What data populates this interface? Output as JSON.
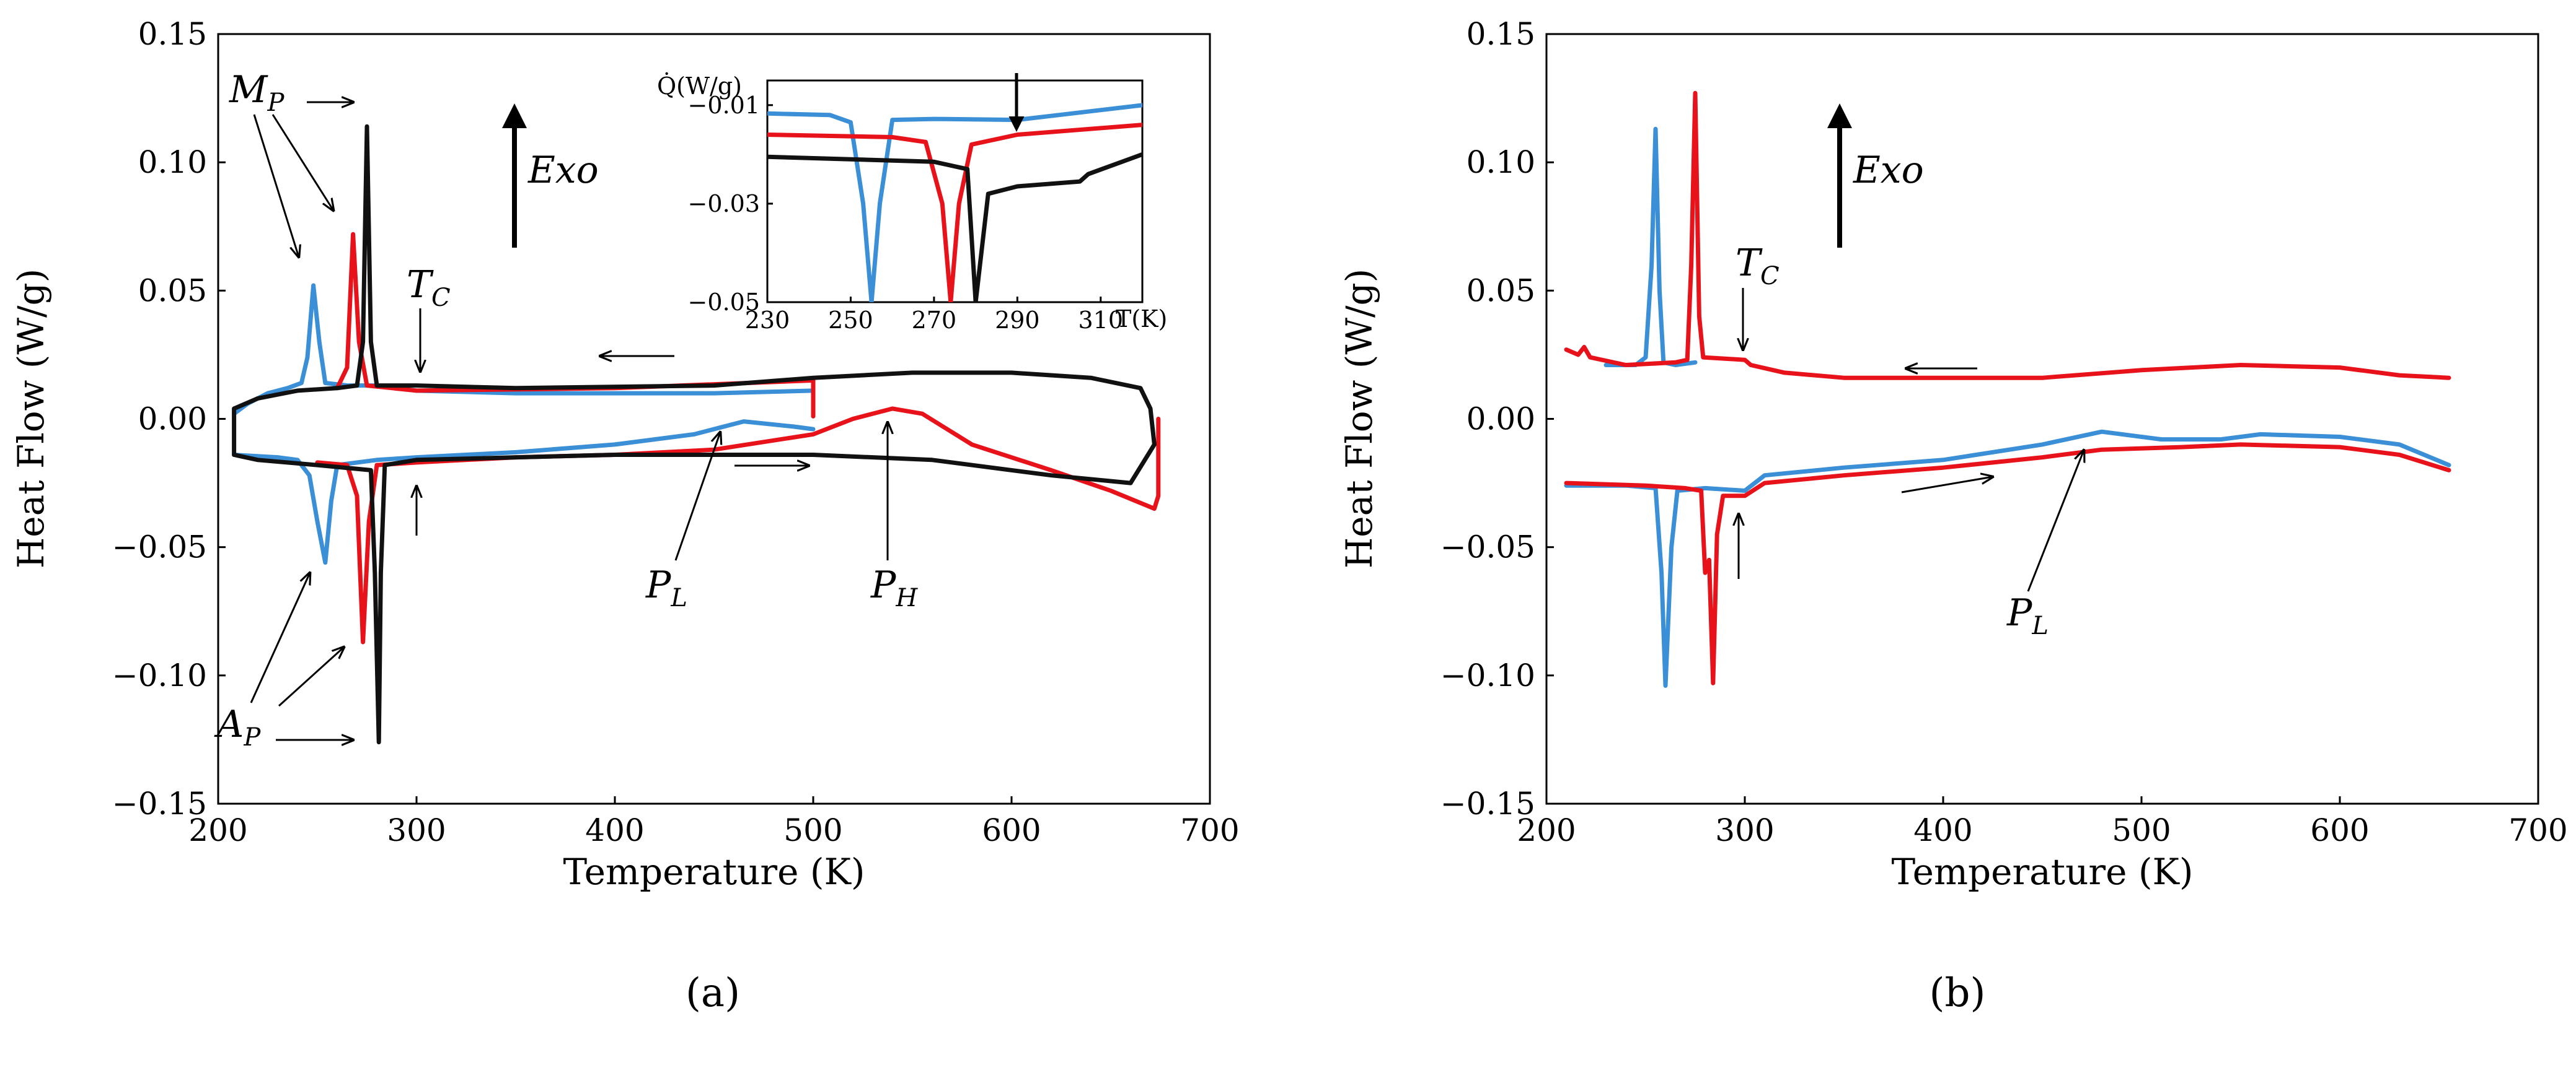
{
  "colors": {
    "blue": "#3a8fd6",
    "red": "#e8121a",
    "black": "#111111"
  },
  "chart_data": [
    {
      "type": "line",
      "panel_label": "(a)",
      "xlabel": "Temperature (K)",
      "ylabel": "Heat Flow (W/g)",
      "xlim": [
        200,
        700
      ],
      "ylim": [
        -0.15,
        0.15
      ],
      "xticks": [
        "200",
        "300",
        "400",
        "500",
        "600",
        "700"
      ],
      "yticks": [
        "0.15",
        "0.10",
        "0.05",
        "0.00",
        "-0.05",
        "-0.10",
        "-0.15"
      ],
      "series": [
        {
          "name": "blue cooling",
          "color": "blue",
          "points": [
            [
              208,
              0.002
            ],
            [
              215,
              0.006
            ],
            [
              225,
              0.01
            ],
            [
              235,
              0.012
            ],
            [
              242,
              0.014
            ],
            [
              245,
              0.024
            ],
            [
              248,
              0.052
            ],
            [
              251,
              0.03
            ],
            [
              254,
              0.014
            ],
            [
              265,
              0.013
            ],
            [
              280,
              0.013
            ],
            [
              300,
              0.011
            ],
            [
              350,
              0.01
            ],
            [
              450,
              0.01
            ],
            [
              500,
              0.011
            ]
          ]
        },
        {
          "name": "blue heating",
          "color": "blue",
          "points": [
            [
              208,
              -0.014
            ],
            [
              230,
              -0.015
            ],
            [
              240,
              -0.016
            ],
            [
              246,
              -0.022
            ],
            [
              250,
              -0.04
            ],
            [
              254,
              -0.056
            ],
            [
              257,
              -0.032
            ],
            [
              260,
              -0.018
            ],
            [
              280,
              -0.016
            ],
            [
              300,
              -0.015
            ],
            [
              350,
              -0.013
            ],
            [
              400,
              -0.01
            ],
            [
              440,
              -0.006
            ],
            [
              465,
              -0.001
            ],
            [
              490,
              -0.003
            ],
            [
              500,
              -0.004
            ]
          ]
        },
        {
          "name": "red cooling",
          "color": "red",
          "points": [
            [
              260,
              0.012
            ],
            [
              265,
              0.02
            ],
            [
              268,
              0.072
            ],
            [
              271,
              0.03
            ],
            [
              275,
              0.013
            ],
            [
              300,
              0.011
            ],
            [
              400,
              0.012
            ],
            [
              500,
              0.015
            ],
            [
              500,
              0.001
            ]
          ]
        },
        {
          "name": "red heating",
          "color": "red",
          "points": [
            [
              250,
              -0.017
            ],
            [
              265,
              -0.018
            ],
            [
              270,
              -0.03
            ],
            [
              273,
              -0.087
            ],
            [
              276,
              -0.04
            ],
            [
              280,
              -0.018
            ],
            [
              300,
              -0.017
            ],
            [
              350,
              -0.015
            ],
            [
              400,
              -0.014
            ],
            [
              450,
              -0.012
            ],
            [
              500,
              -0.006
            ],
            [
              520,
              0.0
            ],
            [
              540,
              0.004
            ],
            [
              555,
              0.002
            ],
            [
              580,
              -0.01
            ],
            [
              620,
              -0.02
            ],
            [
              650,
              -0.028
            ],
            [
              672,
              -0.035
            ],
            [
              674,
              -0.03
            ],
            [
              674,
              0.0
            ]
          ]
        },
        {
          "name": "black cycle",
          "color": "black",
          "points": [
            [
              208,
              0.004
            ],
            [
              220,
              0.008
            ],
            [
              240,
              0.011
            ],
            [
              260,
              0.012
            ],
            [
              270,
              0.013
            ],
            [
              273,
              0.03
            ],
            [
              275,
              0.114
            ],
            [
              277,
              0.03
            ],
            [
              280,
              0.013
            ],
            [
              300,
              0.013
            ],
            [
              350,
              0.012
            ],
            [
              450,
              0.013
            ],
            [
              500,
              0.016
            ],
            [
              550,
              0.018
            ],
            [
              600,
              0.018
            ],
            [
              640,
              0.016
            ],
            [
              665,
              0.012
            ],
            [
              670,
              0.004
            ],
            [
              672,
              -0.01
            ],
            [
              660,
              -0.025
            ],
            [
              620,
              -0.022
            ],
            [
              560,
              -0.016
            ],
            [
              500,
              -0.014
            ],
            [
              400,
              -0.014
            ],
            [
              300,
              -0.016
            ],
            [
              284,
              -0.018
            ],
            [
              282,
              -0.06
            ],
            [
              281,
              -0.126
            ],
            [
              279,
              -0.06
            ],
            [
              277,
              -0.02
            ],
            [
              250,
              -0.018
            ],
            [
              220,
              -0.016
            ],
            [
              208,
              -0.014
            ],
            [
              208,
              0.004
            ]
          ]
        }
      ],
      "annotations": {
        "mp": {
          "main": "M",
          "sub": "P"
        },
        "ap": {
          "main": "A",
          "sub": "P"
        },
        "tc": {
          "main": "T",
          "sub": "C"
        },
        "pl": {
          "main": "P",
          "sub": "L"
        },
        "ph": {
          "main": "P",
          "sub": "H"
        },
        "exo": "Exo"
      },
      "inset": {
        "ylabel": "Q̇(W/g)",
        "xlabel": "T(K)",
        "xlim": [
          230,
          320
        ],
        "ylim": [
          -0.05,
          -0.005
        ],
        "xticks": [
          "230",
          "250",
          "270",
          "290",
          "310"
        ],
        "yticks": [
          "-0.01",
          "-0.03",
          "-0.05"
        ],
        "series": [
          {
            "name": "blue",
            "color": "blue",
            "points": [
              [
                230,
                -0.0117
              ],
              [
                245,
                -0.012
              ],
              [
                250,
                -0.0135
              ],
              [
                253,
                -0.03
              ],
              [
                255,
                -0.05
              ],
              [
                257,
                -0.03
              ],
              [
                260,
                -0.013
              ],
              [
                270,
                -0.0128
              ],
              [
                290,
                -0.013
              ],
              [
                300,
                -0.012
              ],
              [
                320,
                -0.01
              ]
            ]
          },
          {
            "name": "red",
            "color": "red",
            "points": [
              [
                230,
                -0.016
              ],
              [
                260,
                -0.0165
              ],
              [
                268,
                -0.0175
              ],
              [
                272,
                -0.03
              ],
              [
                274,
                -0.05
              ],
              [
                276,
                -0.03
              ],
              [
                279,
                -0.018
              ],
              [
                290,
                -0.016
              ],
              [
                320,
                -0.014
              ]
            ]
          },
          {
            "name": "black",
            "color": "black",
            "points": [
              [
                230,
                -0.0205
              ],
              [
                270,
                -0.0215
              ],
              [
                278,
                -0.023
              ],
              [
                280,
                -0.05
              ],
              [
                283,
                -0.028
              ],
              [
                290,
                -0.0265
              ],
              [
                305,
                -0.0255
              ],
              [
                307,
                -0.024
              ],
              [
                320,
                -0.02
              ]
            ]
          }
        ]
      }
    },
    {
      "type": "line",
      "panel_label": "(b)",
      "xlabel": "Temperature (K)",
      "ylabel": "Heat Flow (W/g)",
      "xlim": [
        200,
        700
      ],
      "ylim": [
        -0.15,
        0.15
      ],
      "xticks": [
        "200",
        "300",
        "400",
        "500",
        "600",
        "700"
      ],
      "yticks": [
        "0.15",
        "0.10",
        "0.05",
        "0.00",
        "-0.05",
        "-0.10",
        "-0.15"
      ],
      "series": [
        {
          "name": "blue cooling",
          "color": "blue",
          "points": [
            [
              230,
              0.021
            ],
            [
              245,
              0.021
            ],
            [
              250,
              0.024
            ],
            [
              253,
              0.06
            ],
            [
              255,
              0.113
            ],
            [
              257,
              0.05
            ],
            [
              259,
              0.022
            ],
            [
              265,
              0.021
            ],
            [
              275,
              0.022
            ]
          ]
        },
        {
          "name": "blue heating",
          "color": "blue",
          "points": [
            [
              210,
              -0.026
            ],
            [
              240,
              -0.026
            ],
            [
              255,
              -0.027
            ],
            [
              258,
              -0.06
            ],
            [
              260,
              -0.104
            ],
            [
              263,
              -0.05
            ],
            [
              266,
              -0.028
            ],
            [
              280,
              -0.027
            ],
            [
              300,
              -0.028
            ],
            [
              310,
              -0.022
            ],
            [
              350,
              -0.019
            ],
            [
              400,
              -0.016
            ],
            [
              450,
              -0.01
            ],
            [
              480,
              -0.005
            ],
            [
              510,
              -0.008
            ],
            [
              540,
              -0.008
            ],
            [
              560,
              -0.006
            ],
            [
              600,
              -0.007
            ],
            [
              630,
              -0.01
            ],
            [
              655,
              -0.018
            ]
          ]
        },
        {
          "name": "red cooling",
          "color": "red",
          "points": [
            [
              210,
              0.027
            ],
            [
              216,
              0.025
            ],
            [
              219,
              0.028
            ],
            [
              222,
              0.024
            ],
            [
              240,
              0.021
            ],
            [
              265,
              0.022
            ],
            [
              271,
              0.023
            ],
            [
              273,
              0.06
            ],
            [
              275,
              0.127
            ],
            [
              277,
              0.04
            ],
            [
              279,
              0.024
            ],
            [
              300,
              0.023
            ],
            [
              303,
              0.021
            ],
            [
              320,
              0.018
            ],
            [
              350,
              0.016
            ],
            [
              400,
              0.016
            ],
            [
              450,
              0.016
            ],
            [
              500,
              0.019
            ],
            [
              550,
              0.021
            ],
            [
              600,
              0.02
            ],
            [
              630,
              0.017
            ],
            [
              655,
              0.016
            ]
          ]
        },
        {
          "name": "red heating",
          "color": "red",
          "points": [
            [
              210,
              -0.025
            ],
            [
              250,
              -0.026
            ],
            [
              270,
              -0.027
            ],
            [
              278,
              -0.028
            ],
            [
              280,
              -0.06
            ],
            [
              282,
              -0.055
            ],
            [
              284,
              -0.103
            ],
            [
              286,
              -0.045
            ],
            [
              289,
              -0.03
            ],
            [
              300,
              -0.03
            ],
            [
              310,
              -0.025
            ],
            [
              350,
              -0.022
            ],
            [
              400,
              -0.019
            ],
            [
              450,
              -0.015
            ],
            [
              480,
              -0.012
            ],
            [
              520,
              -0.011
            ],
            [
              550,
              -0.01
            ],
            [
              600,
              -0.011
            ],
            [
              630,
              -0.014
            ],
            [
              655,
              -0.02
            ]
          ]
        }
      ],
      "annotations": {
        "tc": {
          "main": "T",
          "sub": "C"
        },
        "pl": {
          "main": "P",
          "sub": "L"
        },
        "exo": "Exo"
      }
    }
  ]
}
